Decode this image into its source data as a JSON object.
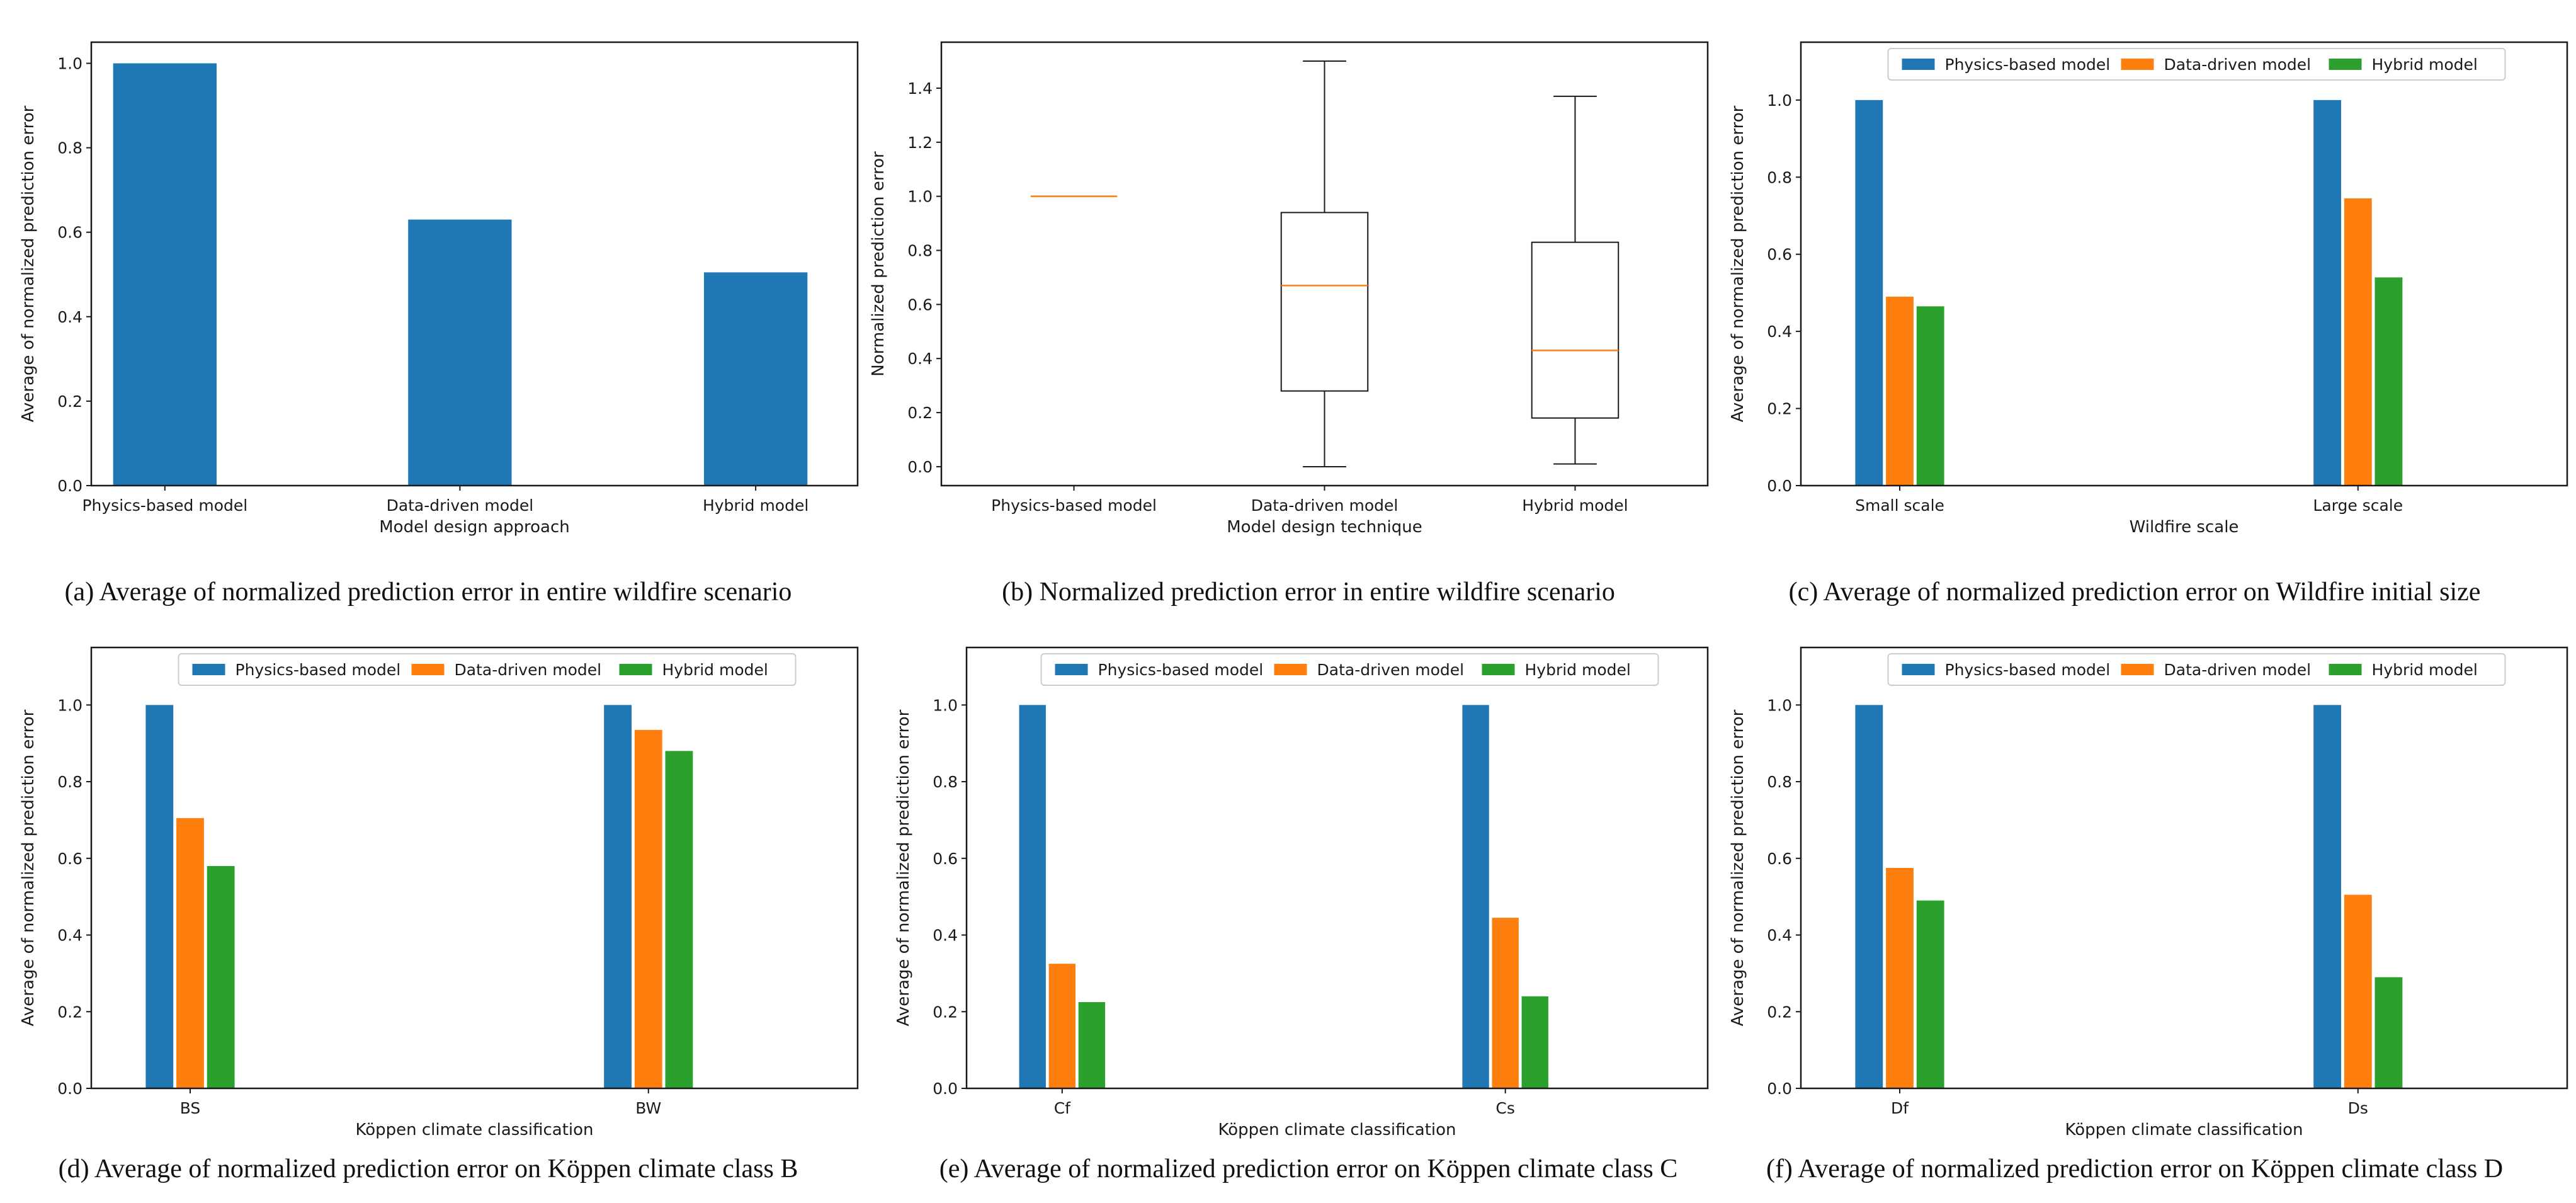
{
  "colors": {
    "physics": "#1f77b4",
    "data_driven": "#ff7f0e",
    "hybrid": "#2ca02c",
    "median": "#ff7f0e",
    "axis": "#1a1a1a"
  },
  "chart_data": [
    {
      "id": "a",
      "type": "bar",
      "caption": "(a)  Average of normalized prediction error in entire wildfire scenario",
      "xlabel": "Model design approach",
      "ylabel": "Average of normalized prediction error",
      "ylim": [
        0,
        1.05
      ],
      "yticks": [
        "0.0",
        "0.2",
        "0.4",
        "0.6",
        "0.8",
        "1.0"
      ],
      "categories": [
        "Physics-based model",
        "Data-driven model",
        "Hybrid model"
      ],
      "values": [
        1.0,
        0.63,
        0.505
      ],
      "legend": null
    },
    {
      "id": "b",
      "type": "box",
      "caption": "(b) Normalized prediction error in entire wildfire scenario",
      "xlabel": "Model design technique",
      "ylabel": "Normalized prediction error",
      "ylim": [
        -0.07,
        1.57
      ],
      "yticks": [
        "0.0",
        "0.2",
        "0.4",
        "0.6",
        "0.8",
        "1.0",
        "1.2",
        "1.4"
      ],
      "categories": [
        "Physics-based model",
        "Data-driven model",
        "Hybrid model"
      ],
      "boxes": [
        {
          "min": 1.0,
          "q1": 1.0,
          "median": 1.0,
          "q3": 1.0,
          "max": 1.0
        },
        {
          "min": 0.0,
          "q1": 0.28,
          "median": 0.67,
          "q3": 0.94,
          "max": 1.5
        },
        {
          "min": 0.01,
          "q1": 0.18,
          "median": 0.43,
          "q3": 0.83,
          "max": 1.37
        }
      ],
      "legend": null
    },
    {
      "id": "c",
      "type": "bar",
      "caption": "(c) Average of normalized prediction error on Wildfire initial size",
      "xlabel": "Wildfire scale",
      "ylabel": "Average of normalized prediction error",
      "ylim": [
        0,
        1.15
      ],
      "yticks": [
        "0.0",
        "0.2",
        "0.4",
        "0.6",
        "0.8",
        "1.0"
      ],
      "categories": [
        "Small scale",
        "Large scale"
      ],
      "series": [
        {
          "name": "Physics-based model",
          "values": [
            1.0,
            1.0
          ]
        },
        {
          "name": "Data-driven model",
          "values": [
            0.49,
            0.745
          ]
        },
        {
          "name": "Hybrid model",
          "values": [
            0.465,
            0.54
          ]
        }
      ],
      "legend": "top"
    },
    {
      "id": "d",
      "type": "bar",
      "caption": "(d) Average of normalized prediction error on Köppen climate class B",
      "xlabel": "Köppen climate classification",
      "ylabel": "Average of normalized prediction error",
      "ylim": [
        0,
        1.15
      ],
      "yticks": [
        "0.0",
        "0.2",
        "0.4",
        "0.6",
        "0.8",
        "1.0"
      ],
      "categories": [
        "BS",
        "BW"
      ],
      "series": [
        {
          "name": "Physics-based model",
          "values": [
            1.0,
            1.0
          ]
        },
        {
          "name": "Data-driven model",
          "values": [
            0.705,
            0.935
          ]
        },
        {
          "name": "Hybrid model",
          "values": [
            0.58,
            0.88
          ]
        }
      ],
      "legend": "top"
    },
    {
      "id": "e",
      "type": "bar",
      "caption": "(e) Average of normalized prediction error on Köppen climate class C",
      "xlabel": "Köppen climate classification",
      "ylabel": "Average of normalized prediction error",
      "ylim": [
        0,
        1.15
      ],
      "yticks": [
        "0.0",
        "0.2",
        "0.4",
        "0.6",
        "0.8",
        "1.0"
      ],
      "categories": [
        "Cf",
        "Cs"
      ],
      "series": [
        {
          "name": "Physics-based model",
          "values": [
            1.0,
            1.0
          ]
        },
        {
          "name": "Data-driven model",
          "values": [
            0.325,
            0.445
          ]
        },
        {
          "name": "Hybrid model",
          "values": [
            0.225,
            0.24
          ]
        }
      ],
      "legend": "top"
    },
    {
      "id": "f",
      "type": "bar",
      "caption": "(f) Average of normalized prediction error on Köppen climate class D",
      "xlabel": "Köppen climate classification",
      "ylabel": "Average of normalized prediction error",
      "ylim": [
        0,
        1.15
      ],
      "yticks": [
        "0.0",
        "0.2",
        "0.4",
        "0.6",
        "0.8",
        "1.0"
      ],
      "categories": [
        "Df",
        "Ds"
      ],
      "series": [
        {
          "name": "Physics-based model",
          "values": [
            1.0,
            1.0
          ]
        },
        {
          "name": "Data-driven model",
          "values": [
            0.575,
            0.505
          ]
        },
        {
          "name": "Hybrid model",
          "values": [
            0.49,
            0.29
          ]
        }
      ],
      "legend": "top"
    }
  ]
}
